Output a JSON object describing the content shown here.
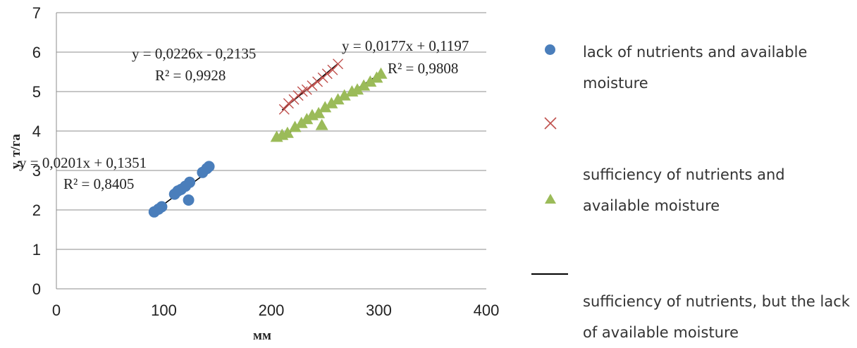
{
  "chart_data": {
    "type": "scatter",
    "title": "",
    "xlabel": "мм",
    "ylabel": "у, т/га",
    "xlim": [
      0,
      400
    ],
    "ylim": [
      0,
      7
    ],
    "x_ticks": [
      "0",
      "100",
      "200",
      "300",
      "400"
    ],
    "y_ticks": [
      "0",
      "1",
      "2",
      "3",
      "4",
      "5",
      "6",
      "7"
    ],
    "grid": "horizontal",
    "legend_position": "right",
    "series": [
      {
        "name": "lack of nutrients  and available moisture",
        "marker": "circle",
        "color": "#4a7ebb",
        "points": [
          [
            91,
            1.95
          ],
          [
            95,
            2.02
          ],
          [
            98,
            2.08
          ],
          [
            110,
            2.4
          ],
          [
            113,
            2.48
          ],
          [
            116,
            2.52
          ],
          [
            120,
            2.6
          ],
          [
            123,
            2.25
          ],
          [
            124,
            2.7
          ],
          [
            136,
            2.95
          ],
          [
            140,
            3.05
          ],
          [
            142,
            3.1
          ]
        ],
        "trendline": {
          "slope": 0.0201,
          "intercept": 0.1351,
          "x_range": [
            91,
            142
          ],
          "equation": "y = 0,0201x + 0,1351",
          "r2": "R² = 0,8405"
        }
      },
      {
        "name": "",
        "marker": "x",
        "color": "#c0504d",
        "points": [
          [
            212,
            4.55
          ],
          [
            216,
            4.7
          ],
          [
            221,
            4.8
          ],
          [
            225,
            4.9
          ],
          [
            229,
            5.0
          ],
          [
            233,
            5.05
          ],
          [
            238,
            5.15
          ],
          [
            243,
            5.25
          ],
          [
            248,
            5.35
          ],
          [
            252,
            5.45
          ],
          [
            257,
            5.55
          ],
          [
            262,
            5.7
          ]
        ],
        "trendline": {
          "slope": 0.0226,
          "intercept": -0.2135,
          "x_range": [
            210,
            262
          ],
          "equation": "y = 0,0226x - 0,2135",
          "r2": "R² = 0,9928"
        }
      },
      {
        "name": "sufficiency of nutrients and available moisture",
        "marker": "triangle",
        "color": "#9bbb59",
        "points": [
          [
            205,
            3.85
          ],
          [
            210,
            3.9
          ],
          [
            215,
            3.95
          ],
          [
            222,
            4.1
          ],
          [
            228,
            4.2
          ],
          [
            233,
            4.3
          ],
          [
            238,
            4.4
          ],
          [
            244,
            4.45
          ],
          [
            247,
            4.15
          ],
          [
            250,
            4.6
          ],
          [
            256,
            4.7
          ],
          [
            262,
            4.8
          ],
          [
            268,
            4.9
          ],
          [
            275,
            5.0
          ],
          [
            280,
            5.05
          ],
          [
            286,
            5.15
          ],
          [
            292,
            5.25
          ],
          [
            298,
            5.35
          ],
          [
            302,
            5.45
          ]
        ],
        "trendline": {
          "slope": 0.0177,
          "intercept": 0.1197,
          "x_range": [
            205,
            302
          ],
          "equation": "y = 0,0177x + 0,1197",
          "r2": "R² = 0,9808"
        }
      },
      {
        "name": "sufficiency of nutrients, but the lack of available moisture",
        "marker": "line",
        "color": "#000000",
        "points": []
      }
    ]
  }
}
